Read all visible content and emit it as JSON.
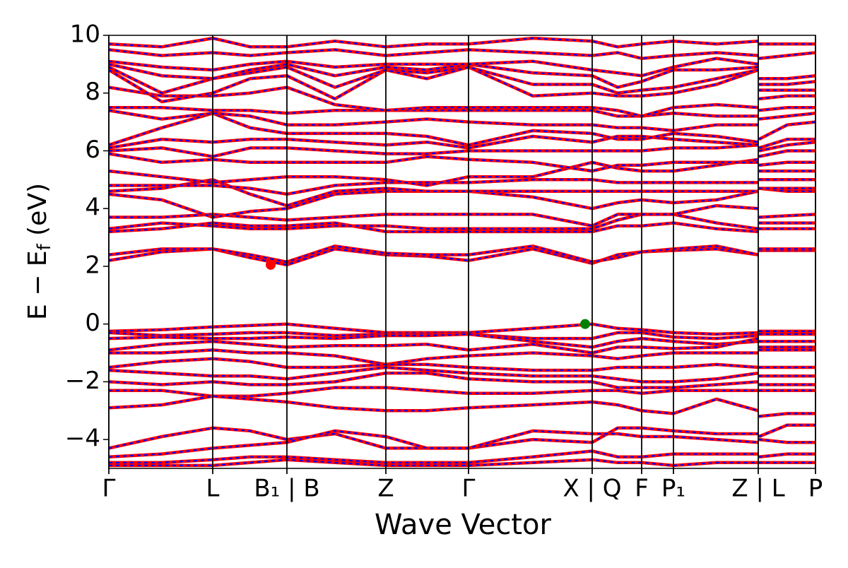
{
  "chart_data": {
    "type": "band-structure",
    "xlabel": "Wave Vector",
    "ylabel": [
      "E − E",
      "f",
      " (eV)"
    ],
    "xlim": [
      0,
      1000
    ],
    "ylim": [
      -5,
      10
    ],
    "yticks": [
      {
        "value": -4,
        "label": "−4"
      },
      {
        "value": -2,
        "label": "−2"
      },
      0,
      2,
      4,
      6,
      8,
      10
    ],
    "xticks": [
      {
        "value": 0,
        "label": "Γ"
      },
      {
        "value": 147,
        "label": "L"
      },
      {
        "value": 252,
        "label": "B₁ | B"
      },
      {
        "value": 392,
        "label": "Z"
      },
      {
        "value": 509,
        "label": "Γ"
      },
      {
        "value": 684,
        "label": "X | Q"
      },
      {
        "value": 754,
        "label": "F"
      },
      {
        "value": 799,
        "label": "P₁"
      },
      {
        "value": 919,
        "label": "Z | L"
      },
      {
        "value": 1000,
        "label": "P"
      }
    ],
    "line_color": "#ff0000",
    "dash_color": "#0000ff",
    "x": [
      0,
      75,
      147,
      200,
      252,
      320,
      392,
      450,
      509,
      600,
      684,
      720,
      754,
      799,
      860,
      919,
      919.5,
      920,
      960,
      1000
    ],
    "bands": [
      [
        -0.25,
        -0.2,
        -0.1,
        -0.05,
        0.0,
        -0.15,
        -0.3,
        -0.3,
        -0.3,
        -0.15,
        0.0,
        -0.15,
        -0.2,
        -0.3,
        -0.35,
        -0.3,
        null,
        -0.25,
        -0.25,
        -0.25
      ],
      [
        -0.3,
        -0.4,
        -0.35,
        -0.3,
        -0.3,
        -0.4,
        -0.35,
        -0.35,
        -0.35,
        -0.5,
        -0.5,
        -0.3,
        -0.3,
        -0.45,
        -0.5,
        -0.4,
        null,
        -0.35,
        -0.35,
        -0.35
      ],
      [
        -0.5,
        -0.45,
        -0.5,
        -0.5,
        -0.45,
        -0.5,
        -0.4,
        -0.4,
        -0.35,
        -0.6,
        -0.8,
        -0.6,
        -0.5,
        -0.6,
        -0.7,
        -0.6,
        null,
        -0.6,
        -0.6,
        -0.6
      ],
      [
        -0.9,
        -0.7,
        -0.6,
        -0.7,
        -0.8,
        -0.75,
        -0.75,
        -0.7,
        -0.9,
        -0.7,
        -1.0,
        -0.8,
        -0.8,
        -0.85,
        -0.8,
        -0.5,
        null,
        -0.8,
        -0.8,
        -0.8
      ],
      [
        -1.0,
        -1.0,
        -0.9,
        -1.0,
        -1.0,
        -1.1,
        -1.4,
        -1.2,
        -1.1,
        -1.0,
        -1.1,
        -1.2,
        -1.1,
        -1.0,
        -1.0,
        -1.0,
        null,
        -0.9,
        -0.9,
        -0.9
      ],
      [
        -1.5,
        -1.3,
        -1.2,
        -1.3,
        -1.5,
        -1.5,
        -1.4,
        -1.4,
        -1.5,
        -1.6,
        -1.6,
        -1.5,
        -1.5,
        -1.5,
        -1.4,
        -1.5,
        null,
        -1.5,
        -1.5,
        -1.5
      ],
      [
        -1.6,
        -1.7,
        -1.8,
        -1.8,
        -1.9,
        -1.7,
        -1.5,
        -1.6,
        -1.7,
        -1.8,
        -1.8,
        -1.9,
        -2.0,
        -2.0,
        -1.9,
        -1.7,
        null,
        -1.8,
        -1.8,
        -1.8
      ],
      [
        -2.0,
        -2.1,
        -2.0,
        -2.1,
        -2.1,
        -2.0,
        -1.7,
        -1.7,
        -1.9,
        -2.0,
        -2.0,
        -2.2,
        -2.2,
        -2.2,
        -2.1,
        -2.0,
        null,
        -2.1,
        -2.1,
        -2.1
      ],
      [
        -2.3,
        -2.3,
        -2.5,
        -2.5,
        -2.4,
        -2.2,
        -2.2,
        -2.3,
        -2.4,
        -2.4,
        -2.3,
        -2.3,
        -2.4,
        -2.3,
        -2.3,
        -2.3,
        null,
        -2.3,
        -2.3,
        -2.3
      ],
      [
        -2.9,
        -2.8,
        -2.5,
        -2.6,
        -2.7,
        -2.9,
        -3.0,
        -3.0,
        -2.9,
        -2.8,
        -2.7,
        -2.8,
        -3.0,
        -3.1,
        -2.6,
        -3.0,
        null,
        -3.2,
        -3.1,
        -3.1
      ],
      [
        -4.3,
        -3.9,
        -3.6,
        -3.7,
        -4.0,
        -3.8,
        -4.3,
        -4.3,
        -4.3,
        -4.0,
        -4.1,
        -3.6,
        -3.6,
        -3.7,
        -3.8,
        -3.8,
        null,
        -3.9,
        -3.5,
        -3.5
      ],
      [
        -4.6,
        -4.5,
        -4.3,
        -4.2,
        -4.1,
        -3.7,
        -3.9,
        -4.3,
        -4.3,
        -3.7,
        -3.8,
        -3.8,
        -3.9,
        -3.9,
        -4.0,
        -4.1,
        null,
        -4.0,
        -4.1,
        -4.1
      ],
      [
        -4.8,
        -4.8,
        -4.7,
        -4.6,
        -4.6,
        -4.7,
        -4.8,
        -4.8,
        -4.8,
        -4.6,
        -4.4,
        -4.6,
        -4.6,
        -4.5,
        -4.5,
        -4.5,
        null,
        -4.6,
        -4.5,
        -4.5
      ],
      [
        -4.9,
        -4.9,
        -4.9,
        -4.8,
        -4.7,
        -4.8,
        -4.9,
        -4.9,
        -4.9,
        -4.8,
        -4.7,
        -4.8,
        -4.8,
        -4.9,
        -4.8,
        -4.8,
        null,
        -4.8,
        -4.8,
        -4.8
      ],
      [
        2.2,
        2.5,
        2.6,
        2.3,
        2.05,
        2.6,
        2.4,
        2.35,
        2.2,
        2.6,
        2.1,
        2.4,
        2.5,
        2.55,
        2.6,
        2.4,
        null,
        2.55,
        2.55,
        2.55
      ],
      [
        2.4,
        2.6,
        2.6,
        2.4,
        2.15,
        2.7,
        2.45,
        2.4,
        2.4,
        2.7,
        2.15,
        2.3,
        2.5,
        2.6,
        2.7,
        2.4,
        null,
        2.6,
        2.6,
        2.6
      ],
      [
        3.2,
        3.3,
        3.5,
        3.4,
        3.4,
        3.5,
        3.2,
        3.2,
        3.2,
        3.2,
        3.2,
        3.4,
        3.4,
        3.5,
        3.3,
        3.2,
        null,
        3.3,
        3.3,
        3.3
      ],
      [
        3.3,
        3.5,
        3.4,
        3.3,
        3.3,
        3.4,
        3.4,
        3.3,
        3.3,
        3.3,
        3.3,
        3.6,
        3.8,
        3.8,
        3.5,
        3.3,
        null,
        3.5,
        3.5,
        3.5
      ],
      [
        3.7,
        3.7,
        3.8,
        3.7,
        3.6,
        3.7,
        3.8,
        3.8,
        3.8,
        3.8,
        3.4,
        3.8,
        3.8,
        3.8,
        4.1,
        4.0,
        null,
        3.7,
        3.75,
        3.8
      ],
      [
        4.5,
        4.3,
        3.7,
        3.9,
        4.0,
        4.5,
        4.6,
        4.6,
        4.6,
        4.4,
        4.0,
        4.2,
        4.3,
        4.2,
        4.3,
        4.6,
        null,
        4.7,
        4.6,
        4.6
      ],
      [
        4.6,
        4.7,
        5.0,
        4.5,
        4.1,
        4.6,
        4.7,
        4.6,
        4.6,
        4.6,
        4.6,
        4.6,
        4.6,
        4.6,
        4.6,
        4.6,
        null,
        4.7,
        4.7,
        4.7
      ],
      [
        4.8,
        4.8,
        4.8,
        4.7,
        4.5,
        4.8,
        4.9,
        4.9,
        4.9,
        5.0,
        5.0,
        4.9,
        4.9,
        4.9,
        4.9,
        4.9,
        null,
        5.0,
        5.0,
        5.0
      ],
      [
        5.3,
        5.1,
        4.9,
        5.0,
        5.1,
        5.1,
        5.0,
        4.8,
        5.1,
        5.1,
        5.6,
        5.4,
        5.3,
        5.3,
        5.5,
        5.7,
        null,
        5.3,
        5.3,
        5.3
      ],
      [
        5.9,
        5.6,
        5.7,
        5.6,
        5.6,
        5.6,
        5.6,
        5.8,
        5.7,
        5.6,
        5.3,
        5.5,
        5.5,
        5.6,
        5.6,
        5.6,
        null,
        5.5,
        5.6,
        5.6
      ],
      [
        6.0,
        6.1,
        5.8,
        6.1,
        6.1,
        6.0,
        5.9,
        5.9,
        6.0,
        6.0,
        6.0,
        6.0,
        6.0,
        6.1,
        6.1,
        6.2,
        null,
        5.8,
        6.0,
        6.0
      ],
      [
        6.1,
        6.4,
        6.3,
        6.4,
        6.4,
        6.3,
        6.2,
        6.3,
        6.1,
        6.5,
        6.3,
        6.5,
        6.5,
        6.4,
        6.3,
        6.2,
        null,
        6.0,
        6.2,
        6.3
      ],
      [
        6.2,
        6.8,
        7.3,
        6.8,
        6.6,
        6.6,
        6.6,
        6.5,
        6.2,
        6.7,
        6.6,
        6.4,
        6.4,
        6.6,
        6.5,
        6.3,
        null,
        6.1,
        6.4,
        6.4
      ],
      [
        7.4,
        7.1,
        7.3,
        7.2,
        6.9,
        6.9,
        7.0,
        7.1,
        7.0,
        6.9,
        6.9,
        6.8,
        6.8,
        6.7,
        6.9,
        6.9,
        null,
        6.4,
        6.9,
        7.0
      ],
      [
        7.5,
        7.5,
        7.4,
        7.4,
        7.3,
        7.4,
        7.4,
        7.4,
        7.4,
        7.4,
        7.4,
        7.2,
        7.2,
        7.3,
        7.2,
        7.2,
        null,
        7.1,
        7.2,
        7.3
      ],
      [
        8.2,
        7.9,
        7.9,
        8.0,
        8.2,
        7.6,
        7.4,
        7.5,
        7.5,
        7.5,
        7.5,
        7.4,
        7.2,
        7.5,
        7.6,
        7.5,
        null,
        7.4,
        7.5,
        7.5
      ],
      [
        8.8,
        7.7,
        8.0,
        8.5,
        8.6,
        7.8,
        8.8,
        8.7,
        8.9,
        7.9,
        8.0,
        7.9,
        7.9,
        8.0,
        8.3,
        8.8,
        null,
        7.8,
        7.9,
        7.9
      ],
      [
        8.9,
        8.0,
        8.5,
        8.7,
        8.9,
        8.2,
        8.8,
        8.5,
        8.9,
        8.3,
        8.3,
        8.0,
        8.1,
        8.2,
        8.5,
        8.8,
        null,
        8.1,
        8.1,
        8.1
      ],
      [
        9.0,
        8.6,
        8.5,
        8.8,
        9.0,
        8.6,
        8.9,
        8.8,
        9.0,
        8.7,
        8.6,
        8.2,
        8.4,
        8.8,
        8.8,
        8.9,
        null,
        8.3,
        8.3,
        8.4
      ],
      [
        9.1,
        8.9,
        8.8,
        9.0,
        9.1,
        8.9,
        9.0,
        9.0,
        9.0,
        9.1,
        8.8,
        8.7,
        8.6,
        8.9,
        9.2,
        9.0,
        null,
        8.5,
        8.5,
        8.6
      ],
      [
        9.5,
        9.3,
        9.4,
        9.3,
        9.4,
        9.5,
        9.3,
        9.4,
        9.5,
        9.4,
        9.3,
        9.4,
        9.2,
        9.3,
        9.4,
        9.3,
        null,
        9.2,
        9.3,
        9.4
      ],
      [
        9.7,
        9.6,
        9.9,
        9.6,
        9.6,
        9.8,
        9.6,
        9.7,
        9.7,
        9.9,
        9.8,
        9.6,
        9.7,
        9.8,
        9.7,
        9.8,
        null,
        9.7,
        9.7,
        9.7
      ]
    ],
    "markers": [
      {
        "x": 229,
        "y": 2.05,
        "color": "#ff0000"
      },
      {
        "x": 674,
        "y": 0,
        "color": "#008000"
      }
    ]
  }
}
